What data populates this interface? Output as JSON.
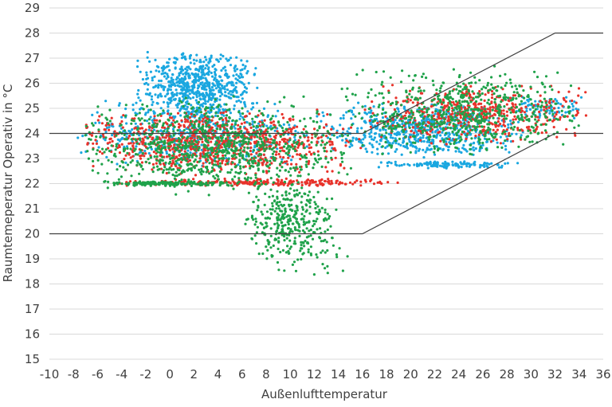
{
  "chart_data": {
    "type": "scatter",
    "title": "",
    "xlabel": "Außenlufttemperatur",
    "ylabel": "Raumtemeperatur Operativ in °C",
    "xlim": [
      -10,
      36
    ],
    "ylim": [
      15,
      29
    ],
    "x_ticks": [
      -10,
      -8,
      -6,
      -4,
      -2,
      0,
      2,
      4,
      6,
      8,
      10,
      12,
      14,
      16,
      18,
      20,
      22,
      24,
      26,
      28,
      30,
      32,
      34,
      36
    ],
    "y_ticks": [
      15,
      16,
      17,
      18,
      19,
      20,
      21,
      22,
      23,
      24,
      25,
      26,
      27,
      28,
      29
    ],
    "grid": {
      "horizontal": true,
      "vertical": false,
      "color": "#d9d9d9"
    },
    "legend": "none",
    "comfort_band": {
      "upper": {
        "x": [
          -10,
          16,
          32,
          36
        ],
        "y": [
          24,
          24,
          28,
          28
        ]
      },
      "lower": {
        "x": [
          -10,
          16,
          32,
          36
        ],
        "y": [
          20,
          20,
          24,
          24
        ]
      },
      "color": "#404040"
    },
    "series": [
      {
        "color": "#1aa7e0",
        "clusters": [
          {
            "x": [
              -3,
              7.5
            ],
            "y": [
              24.5,
              27.3
            ],
            "n": 650
          },
          {
            "x": [
              -8,
              12
            ],
            "y": [
              22.5,
              25.5
            ],
            "n": 500
          },
          {
            "x": [
              12,
              30
            ],
            "y": [
              23,
              25.3
            ],
            "n": 650
          },
          {
            "x": [
              16,
              29
            ],
            "y": [
              22.6,
              22.9
            ],
            "n": 130
          },
          {
            "x": [
              28,
              35
            ],
            "y": [
              24.5,
              25.5
            ],
            "n": 80
          }
        ]
      },
      {
        "color": "#e8322a",
        "clusters": [
          {
            "x": [
              -8,
              16
            ],
            "y": [
              22.3,
              25
            ],
            "n": 850
          },
          {
            "x": [
              -5,
              20
            ],
            "y": [
              21.9,
              22.2
            ],
            "n": 220
          },
          {
            "x": [
              16,
              35
            ],
            "y": [
              23.5,
              26
            ],
            "n": 500
          }
        ]
      },
      {
        "color": "#1fa24a",
        "clusters": [
          {
            "x": [
              -8,
              16
            ],
            "y": [
              21.5,
              25.5
            ],
            "n": 900
          },
          {
            "x": [
              6,
              14
            ],
            "y": [
              19,
              22
            ],
            "n": 320
          },
          {
            "x": [
              7,
              15
            ],
            "y": [
              18.3,
              20
            ],
            "n": 40
          },
          {
            "x": [
              14,
              35
            ],
            "y": [
              23,
              26.7
            ],
            "n": 650
          },
          {
            "x": [
              -6,
              6
            ],
            "y": [
              21.9,
              22.1
            ],
            "n": 160
          }
        ]
      }
    ]
  }
}
